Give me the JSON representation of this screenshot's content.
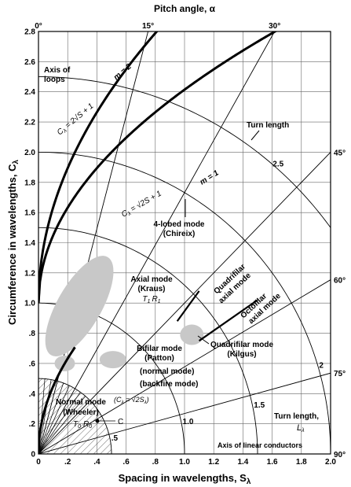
{
  "chart_data": {
    "type": "diagram-chart",
    "x_axis": {
      "label": "Spacing in wavelengths, S",
      "label_symbol": "λ",
      "range": [
        0,
        2.0
      ],
      "ticks": [
        {
          "v": 0,
          "t": "0"
        },
        {
          "v": 0.2,
          "t": ".2"
        },
        {
          "v": 0.4,
          "t": ".4"
        },
        {
          "v": 0.6,
          "t": ".6"
        },
        {
          "v": 0.8,
          "t": ".8"
        },
        {
          "v": 1.0,
          "t": "1.0"
        },
        {
          "v": 1.2,
          "t": "1.2"
        },
        {
          "v": 1.4,
          "t": "1.4"
        },
        {
          "v": 1.6,
          "t": "1.6"
        },
        {
          "v": 1.8,
          "t": "1.8"
        },
        {
          "v": 2.0,
          "t": "2.0"
        }
      ]
    },
    "y_axis": {
      "label": "Circumference in wavelengths, C",
      "label_symbol": "λ",
      "range": [
        0,
        2.8
      ],
      "ticks": [
        {
          "v": 0,
          "t": "0"
        },
        {
          "v": 0.2,
          "t": ".2"
        },
        {
          "v": 0.4,
          "t": ".4"
        },
        {
          "v": 0.6,
          "t": ".6"
        },
        {
          "v": 0.8,
          "t": ".8"
        },
        {
          "v": 1.0,
          "t": "1.0"
        },
        {
          "v": 1.2,
          "t": "1.2"
        },
        {
          "v": 1.4,
          "t": "1.4"
        },
        {
          "v": 1.6,
          "t": "1.6"
        },
        {
          "v": 1.8,
          "t": "1.8"
        },
        {
          "v": 2.0,
          "t": "2.0"
        },
        {
          "v": 2.2,
          "t": "2.2"
        },
        {
          "v": 2.4,
          "t": "2.4"
        },
        {
          "v": 2.6,
          "t": "2.6"
        },
        {
          "v": 2.8,
          "t": "2.8"
        }
      ]
    },
    "top_axis": {
      "label": "Pitch angle, α",
      "ticks": [
        {
          "deg": 0,
          "t": "0°"
        },
        {
          "deg": 15,
          "t": "15°"
        },
        {
          "deg": 30,
          "t": "30°"
        }
      ]
    },
    "right_axis": {
      "ticks": [
        {
          "deg": 45,
          "t": "45°"
        },
        {
          "deg": 60,
          "t": "60°"
        },
        {
          "deg": 75,
          "t": "75°"
        },
        {
          "deg": 90,
          "t": "90°"
        }
      ]
    },
    "turn_length_arcs": [
      0.5,
      1.0,
      1.5,
      2.0,
      2.5
    ],
    "turn_length_labels": [
      {
        "L": 0.5,
        "t": ".5"
      },
      {
        "L": 1.0,
        "t": "1.0"
      },
      {
        "L": 1.5,
        "t": "1.5"
      },
      {
        "L": 2.0,
        "t": "2"
      },
      {
        "L": 2.5,
        "t": "2.5"
      }
    ],
    "curves": [
      {
        "name": "m = 2",
        "formula_left": "C",
        "formula_sub": "λ",
        "formula_right": " = 2√S",
        "formula_tail": " + 1",
        "m": 2
      },
      {
        "name": "m = 1",
        "formula_left": "C",
        "formula_sub": "λ",
        "formula_right": " = √2S",
        "formula_tail": " + 1",
        "m": 1
      }
    ],
    "regions": [
      {
        "name": "Axial mode",
        "sub": "(Kraus)",
        "mode": "T",
        "mode_sub": "1",
        "mode2": "R",
        "mode2_sub": "1"
      },
      {
        "name": "Bifilar mode",
        "sub": "(Patton)"
      },
      {
        "name": "Quadrifilar mode",
        "sub": "(Kilgus)"
      },
      {
        "name": "Normal mode",
        "sub": "(Wheeler)",
        "mode": "T",
        "mode_sub": "0",
        "mode2": "R",
        "mode2_sub": "0"
      }
    ],
    "annotations": {
      "axis_of_loops": [
        "Axis of",
        "loops"
      ],
      "turn_length_top": "Turn length",
      "four_lobed": [
        "4-lobed mode",
        "(Chireix)"
      ],
      "quadrifilar_axial": [
        "Quadrifilar",
        "axial mode"
      ],
      "octofilar_axial": [
        "Octofilar",
        "axial mode"
      ],
      "normal_mode_paren": "(normal mode)",
      "backfire_mode_paren": "(backfire mode)",
      "normal_mode_formula": "(C",
      "normal_mode_formula_tail": " = √2S",
      "point_c": "C",
      "turn_length_right": "Turn length,",
      "turn_length_right_sym": "L",
      "axis_linear": "Axis of linear conductors",
      "m2_label": "m = 2",
      "m1_label": "m = 1"
    },
    "colors": {
      "region_fill": "#c8c8c8",
      "ink": "#000000",
      "grid": "#666666"
    }
  }
}
